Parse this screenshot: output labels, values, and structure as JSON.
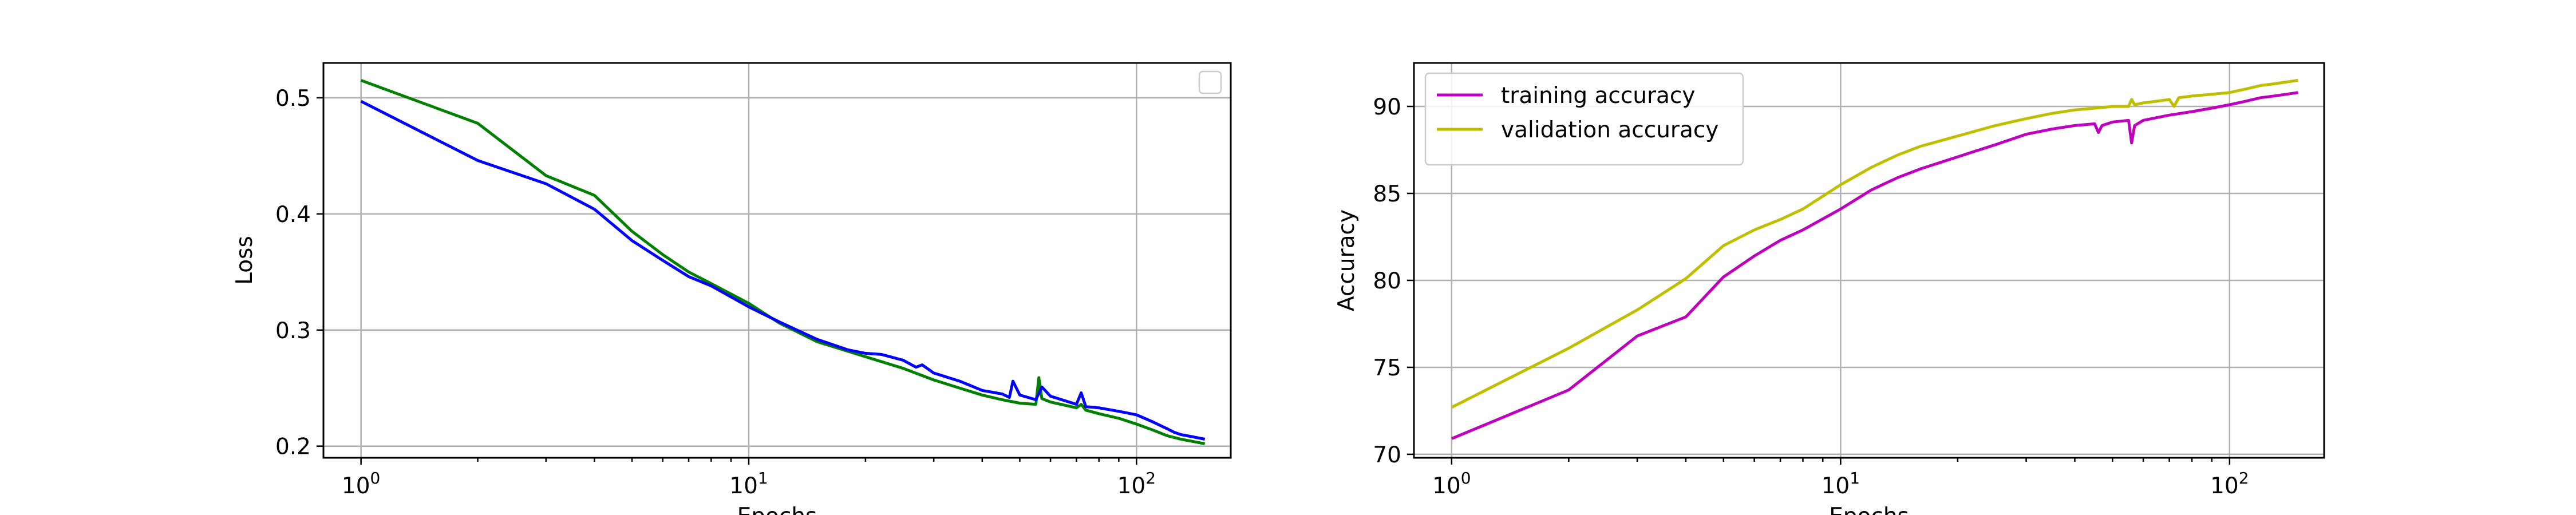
{
  "chart_data": [
    {
      "type": "line",
      "title": "",
      "xlabel": "Epochs",
      "ylabel": "Loss",
      "x_scale": "log",
      "xlim": [
        0.8,
        175
      ],
      "ylim": [
        0.19,
        0.53
      ],
      "grid": true,
      "legend": {
        "placement": "upper right",
        "entries": []
      },
      "x_ticks": [
        {
          "value": 1,
          "base": "10",
          "exp": "0"
        },
        {
          "value": 10,
          "base": "10",
          "exp": "1"
        },
        {
          "value": 100,
          "base": "10",
          "exp": "2"
        }
      ],
      "y_ticks": [
        {
          "value": 0.2,
          "label": "0.2"
        },
        {
          "value": 0.3,
          "label": "0.3"
        },
        {
          "value": 0.4,
          "label": "0.4"
        },
        {
          "value": 0.5,
          "label": "0.5"
        }
      ],
      "series": [
        {
          "color": "#008000",
          "x": [
            1,
            2,
            3,
            4,
            5,
            6,
            7,
            8,
            10,
            12,
            15,
            20,
            25,
            30,
            35,
            40,
            45,
            50,
            55,
            56,
            57,
            60,
            70,
            72,
            74,
            80,
            90,
            100,
            110,
            120,
            130,
            140,
            150
          ],
          "y": [
            0.515,
            0.478,
            0.433,
            0.416,
            0.385,
            0.365,
            0.35,
            0.34,
            0.323,
            0.306,
            0.29,
            0.277,
            0.267,
            0.257,
            0.25,
            0.244,
            0.24,
            0.237,
            0.236,
            0.259,
            0.241,
            0.238,
            0.233,
            0.236,
            0.231,
            0.228,
            0.224,
            0.219,
            0.214,
            0.209,
            0.206,
            0.204,
            0.202
          ]
        },
        {
          "color": "#0000ff",
          "x": [
            1,
            2,
            3,
            4,
            5,
            6,
            7,
            8,
            10,
            12,
            15,
            18,
            20,
            22,
            25,
            27,
            28,
            30,
            35,
            40,
            45,
            47,
            48,
            50,
            55,
            57,
            60,
            70,
            72,
            74,
            80,
            90,
            100,
            110,
            120,
            125,
            130,
            140,
            150
          ],
          "y": [
            0.497,
            0.446,
            0.426,
            0.404,
            0.377,
            0.36,
            0.346,
            0.338,
            0.32,
            0.307,
            0.292,
            0.283,
            0.28,
            0.279,
            0.274,
            0.268,
            0.27,
            0.263,
            0.256,
            0.248,
            0.245,
            0.242,
            0.256,
            0.244,
            0.24,
            0.251,
            0.243,
            0.236,
            0.246,
            0.234,
            0.233,
            0.23,
            0.227,
            0.221,
            0.215,
            0.212,
            0.21,
            0.208,
            0.206
          ]
        }
      ]
    },
    {
      "type": "line",
      "title": "",
      "xlabel": "Epochs",
      "ylabel": "Accuracy",
      "x_scale": "log",
      "xlim": [
        0.8,
        175
      ],
      "ylim": [
        69.8,
        92.5
      ],
      "grid": true,
      "legend": {
        "placement": "upper left",
        "entries": [
          "training accuracy",
          "validation accuracy"
        ]
      },
      "x_ticks": [
        {
          "value": 1,
          "base": "10",
          "exp": "0"
        },
        {
          "value": 10,
          "base": "10",
          "exp": "1"
        },
        {
          "value": 100,
          "base": "10",
          "exp": "2"
        }
      ],
      "y_ticks": [
        {
          "value": 70,
          "label": "70"
        },
        {
          "value": 75,
          "label": "75"
        },
        {
          "value": 80,
          "label": "80"
        },
        {
          "value": 85,
          "label": "85"
        },
        {
          "value": 90,
          "label": "90"
        }
      ],
      "series": [
        {
          "name": "training accuracy",
          "color": "#bf00bf",
          "x": [
            1,
            2,
            3,
            4,
            5,
            6,
            7,
            8,
            10,
            12,
            14,
            16,
            20,
            25,
            30,
            35,
            40,
            45,
            46,
            47,
            50,
            55,
            56,
            57,
            60,
            70,
            80,
            90,
            100,
            110,
            120,
            130,
            140,
            150
          ],
          "y": [
            70.9,
            73.7,
            76.8,
            77.9,
            80.2,
            81.4,
            82.3,
            82.9,
            84.1,
            85.2,
            85.9,
            86.4,
            87.1,
            87.8,
            88.4,
            88.7,
            88.9,
            89.0,
            88.5,
            88.9,
            89.1,
            89.2,
            87.9,
            88.9,
            89.2,
            89.5,
            89.7,
            89.9,
            90.1,
            90.3,
            90.5,
            90.6,
            90.7,
            90.8
          ]
        },
        {
          "name": "validation accuracy",
          "color": "#bfbf00",
          "x": [
            1,
            2,
            3,
            4,
            5,
            6,
            7,
            8,
            10,
            12,
            14,
            16,
            20,
            25,
            30,
            35,
            40,
            45,
            50,
            55,
            56,
            57,
            60,
            65,
            70,
            72,
            74,
            80,
            90,
            100,
            110,
            120,
            130,
            140,
            150
          ],
          "y": [
            72.7,
            76.1,
            78.3,
            80.1,
            82.0,
            82.9,
            83.5,
            84.1,
            85.5,
            86.5,
            87.2,
            87.7,
            88.3,
            88.9,
            89.3,
            89.6,
            89.8,
            89.9,
            90.0,
            90.0,
            90.4,
            90.1,
            90.2,
            90.3,
            90.4,
            90.0,
            90.5,
            90.6,
            90.7,
            90.8,
            91.0,
            91.2,
            91.3,
            91.4,
            91.5
          ]
        }
      ]
    }
  ]
}
